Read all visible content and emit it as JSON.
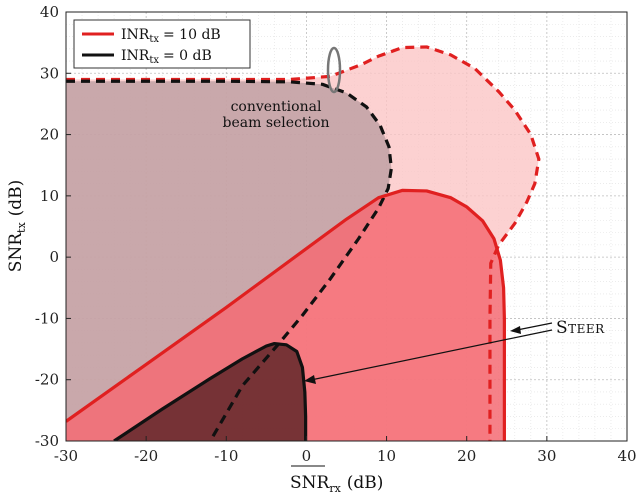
{
  "chart_data": {
    "type": "area",
    "xlabel_main": "SNR",
    "xlabel_sub": "rx",
    "xlabel_unit": "(dB)",
    "ylabel_main": "SNR",
    "ylabel_sub": "tx",
    "ylabel_unit": "(dB)",
    "xlim": [
      -30,
      40
    ],
    "ylim": [
      -30,
      40
    ],
    "xticks": [
      -30,
      -20,
      -10,
      0,
      10,
      20,
      30,
      40
    ],
    "yticks": [
      -30,
      -20,
      -10,
      0,
      10,
      20,
      30,
      40
    ],
    "grid": "on (major and minor, dotted)",
    "legend_placement": "top-left",
    "legend": [
      {
        "main": "INR",
        "sub": "tx",
        "value": "= 10 dB",
        "color": "#e02020"
      },
      {
        "main": "INR",
        "sub": "tx",
        "value": "= 0 dB",
        "color": "#111111"
      }
    ],
    "annotations": {
      "conventional_line1": "conventional",
      "conventional_line2": "beam selection",
      "steer": "Steer"
    },
    "series": [
      {
        "name": "INR_tx = 10 dB, STEER",
        "style": "solid",
        "color": "#e02020",
        "fill": "#f56b73",
        "points": [
          [
            -30,
            -26.8
          ],
          [
            -20,
            -17.5
          ],
          [
            -10,
            -8.2
          ],
          [
            0,
            1.4
          ],
          [
            5,
            6.2
          ],
          [
            9,
            9.7
          ],
          [
            12,
            10.9
          ],
          [
            15,
            10.8
          ],
          [
            18,
            9.7
          ],
          [
            20,
            8.2
          ],
          [
            22,
            5.9
          ],
          [
            23.4,
            3
          ],
          [
            24.2,
            -0.5
          ],
          [
            24.6,
            -5
          ],
          [
            24.7,
            -10
          ],
          [
            24.7,
            -30
          ]
        ]
      },
      {
        "name": "INR_tx = 0 dB, STEER",
        "style": "solid",
        "color": "#111111",
        "fill": "#6b2d30",
        "points": [
          [
            -24,
            -30
          ],
          [
            -18,
            -24.8
          ],
          [
            -12,
            -19.8
          ],
          [
            -8,
            -16.6
          ],
          [
            -5,
            -14.5
          ],
          [
            -4,
            -14.1
          ],
          [
            -2.5,
            -14.3
          ],
          [
            -1.2,
            -15.4
          ],
          [
            -0.5,
            -18
          ],
          [
            -0.2,
            -22
          ],
          [
            -0.1,
            -26
          ],
          [
            -0.1,
            -30
          ]
        ]
      },
      {
        "name": "INR_tx = 10 dB, conventional beam selection",
        "style": "dashed",
        "color": "#e02020",
        "fill": "#fbc5c6",
        "points": [
          [
            -30,
            29
          ],
          [
            -10,
            29
          ],
          [
            -2,
            29
          ],
          [
            3,
            29.5
          ],
          [
            7,
            31.5
          ],
          [
            9,
            32.8
          ],
          [
            12,
            34.2
          ],
          [
            15,
            34.3
          ],
          [
            18,
            33
          ],
          [
            21,
            30.8
          ],
          [
            24,
            27
          ],
          [
            26,
            24
          ],
          [
            28,
            20
          ],
          [
            29,
            16
          ],
          [
            28.5,
            12
          ],
          [
            27.5,
            9
          ],
          [
            26,
            5.5
          ],
          [
            24,
            2
          ],
          [
            23,
            -1
          ],
          [
            22.9,
            -10
          ],
          [
            22.9,
            -30
          ]
        ]
      },
      {
        "name": "INR_tx = 0 dB, conventional beam selection",
        "style": "dashed",
        "color": "#111111",
        "fill": "#b89a9d",
        "points": [
          [
            -30,
            28.7
          ],
          [
            -20,
            28.7
          ],
          [
            -10,
            28.7
          ],
          [
            -2,
            28.6
          ],
          [
            2,
            28.2
          ],
          [
            5,
            26.8
          ],
          [
            7.5,
            24.5
          ],
          [
            9.2,
            21.5
          ],
          [
            10.3,
            18
          ],
          [
            10.6,
            14.5
          ],
          [
            10.2,
            11.2
          ],
          [
            9,
            8
          ],
          [
            6.5,
            3
          ],
          [
            3,
            -3.5
          ],
          [
            -0.5,
            -9.5
          ],
          [
            -3.5,
            -14.2
          ],
          [
            -8,
            -21
          ],
          [
            -12,
            -30
          ]
        ]
      }
    ]
  }
}
